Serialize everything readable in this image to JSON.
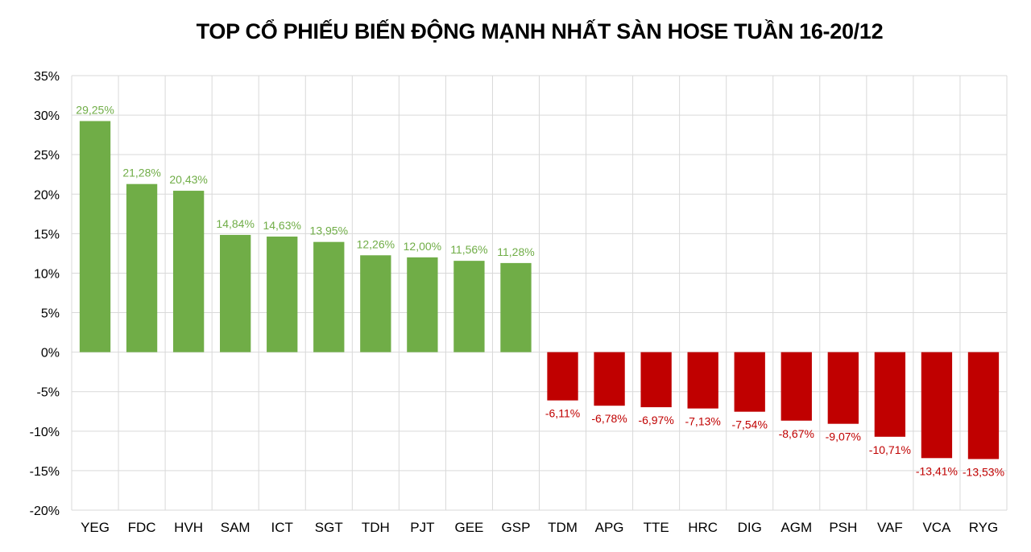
{
  "chart_data": {
    "type": "bar",
    "title": "TOP CỔ PHIẾU BIẾN ĐỘNG MẠNH NHẤT SÀN HOSE TUẦN 16-20/12",
    "categories": [
      "YEG",
      "FDC",
      "HVH",
      "SAM",
      "ICT",
      "SGT",
      "TDH",
      "PJT",
      "GEE",
      "GSP",
      "TDM",
      "APG",
      "TTE",
      "HRC",
      "DIG",
      "AGM",
      "PSH",
      "VAF",
      "VCA",
      "RYG"
    ],
    "values": [
      29.25,
      21.28,
      20.43,
      14.84,
      14.63,
      13.95,
      12.26,
      12.0,
      11.56,
      11.28,
      -6.11,
      -6.78,
      -6.97,
      -7.13,
      -7.54,
      -8.67,
      -9.07,
      -10.71,
      -13.41,
      -13.53
    ],
    "value_labels": [
      "29,25%",
      "21,28%",
      "20,43%",
      "14,84%",
      "14,63%",
      "13,95%",
      "12,26%",
      "12,00%",
      "11,56%",
      "11,28%",
      "-6,11%",
      "-6,78%",
      "-6,97%",
      "-7,13%",
      "-7,54%",
      "-8,67%",
      "-9,07%",
      "-10,71%",
      "-13,41%",
      "-13,53%"
    ],
    "y_ticks": [
      35,
      30,
      25,
      20,
      15,
      10,
      5,
      0,
      -5,
      -10,
      -15,
      -20
    ],
    "y_tick_labels": [
      "35%",
      "30%",
      "25%",
      "20%",
      "15%",
      "10%",
      "5%",
      "0%",
      "-5%",
      "-10%",
      "-15%",
      "-20%"
    ],
    "ylim": [
      -20,
      35
    ],
    "xlabel": "",
    "ylabel": "",
    "grid": true,
    "legend": "none",
    "colors": {
      "positive": "#70ad47",
      "negative": "#c00000",
      "grid": "#d9d9d9",
      "text": "#000000"
    }
  }
}
